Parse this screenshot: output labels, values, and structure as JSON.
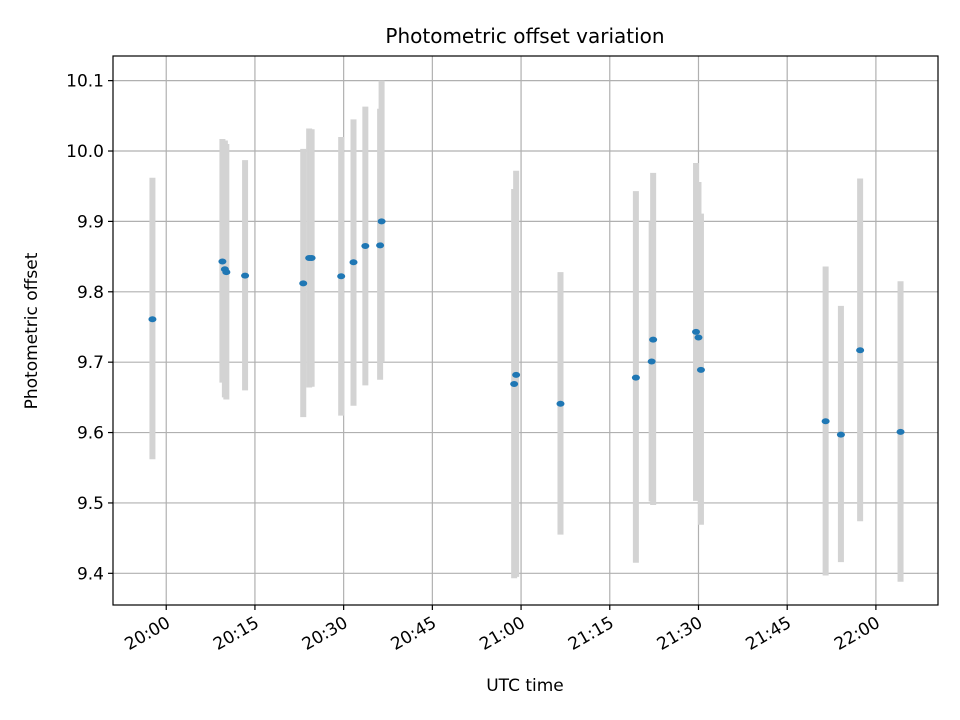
{
  "chart_data": {
    "type": "scatter",
    "title": "Photometric offset variation",
    "xlabel": "UTC time",
    "ylabel": "Photometric offset",
    "x_tick_labels": [
      "20:00",
      "20:15",
      "20:30",
      "20:45",
      "21:00",
      "21:15",
      "21:30",
      "21:45",
      "22:00"
    ],
    "y_tick_labels": [
      "9.4",
      "9.5",
      "9.6",
      "9.7",
      "9.8",
      "9.9",
      "10.0",
      "10.1"
    ],
    "y_ticks": [
      9.4,
      9.5,
      9.6,
      9.7,
      9.8,
      9.9,
      10.0,
      10.1
    ],
    "xlim": [
      "19:51:00",
      "22:10:30"
    ],
    "ylim": [
      9.355,
      10.135
    ],
    "grid": true,
    "colors": {
      "points": "#1f77b4",
      "error_bars": "#d3d3d3",
      "grid": "#b0b0b0"
    },
    "series": [
      {
        "points": [
          {
            "x": "19:57:40",
            "y": 9.761,
            "ylow": 9.562,
            "yhigh": 9.962
          },
          {
            "x": "20:09:30",
            "y": 9.843,
            "ylow": 9.671,
            "yhigh": 10.017
          },
          {
            "x": "20:09:55",
            "y": 9.832,
            "ylow": 9.65,
            "yhigh": 10.015
          },
          {
            "x": "20:10:10",
            "y": 9.828,
            "ylow": 9.647,
            "yhigh": 10.01
          },
          {
            "x": "20:13:20",
            "y": 9.823,
            "ylow": 9.66,
            "yhigh": 9.987
          },
          {
            "x": "20:23:10",
            "y": 9.812,
            "ylow": 9.622,
            "yhigh": 10.003
          },
          {
            "x": "20:24:10",
            "y": 9.848,
            "ylow": 9.664,
            "yhigh": 10.032
          },
          {
            "x": "20:24:35",
            "y": 9.848,
            "ylow": 9.665,
            "yhigh": 10.031
          },
          {
            "x": "20:29:35",
            "y": 9.822,
            "ylow": 9.624,
            "yhigh": 10.02
          },
          {
            "x": "20:31:40",
            "y": 9.842,
            "ylow": 9.638,
            "yhigh": 10.045
          },
          {
            "x": "20:33:40",
            "y": 9.865,
            "ylow": 9.667,
            "yhigh": 10.063
          },
          {
            "x": "20:36:10",
            "y": 9.866,
            "ylow": 9.675,
            "yhigh": 10.06
          },
          {
            "x": "20:36:25",
            "y": 9.9,
            "ylow": 9.7,
            "yhigh": 10.1
          },
          {
            "x": "20:58:50",
            "y": 9.669,
            "ylow": 9.393,
            "yhigh": 9.946
          },
          {
            "x": "20:59:10",
            "y": 9.682,
            "ylow": 9.395,
            "yhigh": 9.972
          },
          {
            "x": "21:06:40",
            "y": 9.641,
            "ylow": 9.455,
            "yhigh": 9.828
          },
          {
            "x": "21:19:25",
            "y": 9.678,
            "ylow": 9.415,
            "yhigh": 9.943
          },
          {
            "x": "21:22:05",
            "y": 9.701,
            "ylow": 9.502,
            "yhigh": 9.9
          },
          {
            "x": "21:22:20",
            "y": 9.732,
            "ylow": 9.497,
            "yhigh": 9.969
          },
          {
            "x": "21:29:35",
            "y": 9.743,
            "ylow": 9.503,
            "yhigh": 9.983
          },
          {
            "x": "21:30:00",
            "y": 9.735,
            "ylow": 9.515,
            "yhigh": 9.956
          },
          {
            "x": "21:30:25",
            "y": 9.689,
            "ylow": 9.469,
            "yhigh": 9.911
          },
          {
            "x": "21:51:30",
            "y": 9.616,
            "ylow": 9.397,
            "yhigh": 9.836
          },
          {
            "x": "21:54:05",
            "y": 9.597,
            "ylow": 9.416,
            "yhigh": 9.78
          },
          {
            "x": "21:57:20",
            "y": 9.717,
            "ylow": 9.474,
            "yhigh": 9.961
          },
          {
            "x": "22:04:10",
            "y": 9.601,
            "ylow": 9.388,
            "yhigh": 9.815
          }
        ]
      }
    ]
  }
}
